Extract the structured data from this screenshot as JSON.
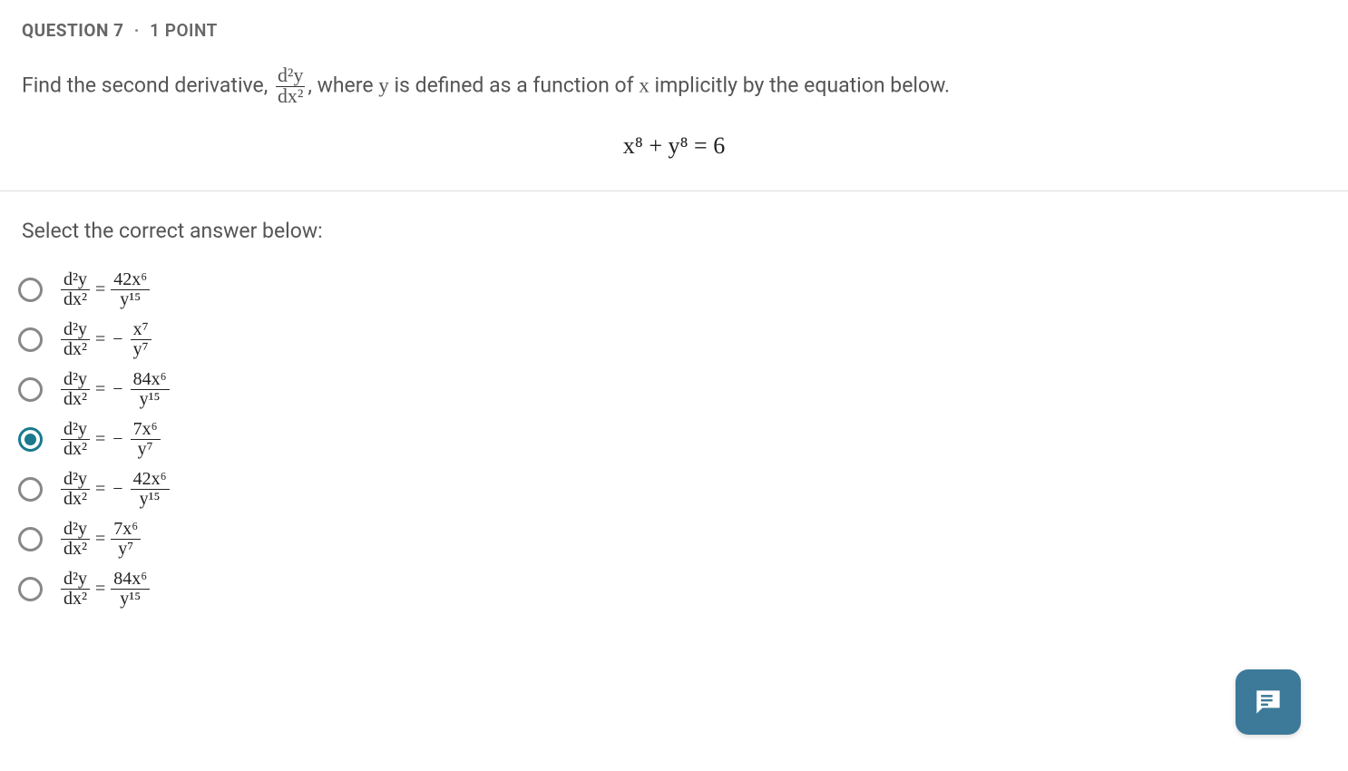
{
  "header": {
    "question_label": "QUESTION 7",
    "divider": "·",
    "points": "1 POINT"
  },
  "prompt": {
    "prefix": "Find the second derivative, ",
    "deriv_num": "d²y",
    "deriv_den": "dx²",
    "mid": ", where ",
    "yvar": "y",
    "mid2": " is defined as a function of ",
    "xvar": "x",
    "suffix": " implicitly by the equation below."
  },
  "equation": "x⁸ + y⁸ = 6",
  "select_label": "Select the correct answer below:",
  "lhs": {
    "num": "d²y",
    "den": "dx²"
  },
  "options": [
    {
      "id": "a",
      "neg": false,
      "rhs_num": "42x⁶",
      "rhs_den": "y¹⁵",
      "selected": false
    },
    {
      "id": "b",
      "neg": true,
      "rhs_num": "x⁷",
      "rhs_den": "y⁷",
      "selected": false
    },
    {
      "id": "c",
      "neg": true,
      "rhs_num": "84x⁶",
      "rhs_den": "y¹⁵",
      "selected": false
    },
    {
      "id": "d",
      "neg": true,
      "rhs_num": "7x⁶",
      "rhs_den": "y⁷",
      "selected": true
    },
    {
      "id": "e",
      "neg": true,
      "rhs_num": "42x⁶",
      "rhs_den": "y¹⁵",
      "selected": false
    },
    {
      "id": "f",
      "neg": false,
      "rhs_num": "7x⁶",
      "rhs_den": "y⁷",
      "selected": false
    },
    {
      "id": "g",
      "neg": false,
      "rhs_num": "84x⁶",
      "rhs_den": "y¹⁵",
      "selected": false
    }
  ],
  "colors": {
    "accent": "#1a7a8c",
    "radio_border": "#888888",
    "fab_bg": "#3d7a99",
    "text": "#555555",
    "math": "#222222",
    "divider": "#dddddd"
  }
}
